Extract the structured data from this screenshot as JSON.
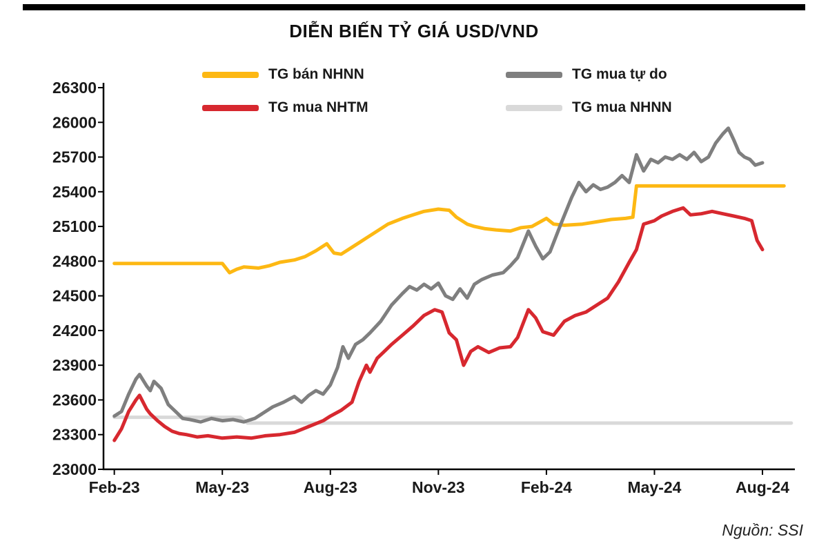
{
  "page": {
    "title": "DIỄN BIẾN TỶ GIÁ USD/VND",
    "source_note": "Nguồn: SSI"
  },
  "legend": [
    {
      "label": "TG bán NHNN",
      "color": "#FDB813"
    },
    {
      "label": "TG mua tự do",
      "color": "#7F7F7F"
    },
    {
      "label": "TG mua NHTM",
      "color": "#D7282F"
    },
    {
      "label": "TG mua NHNN",
      "color": "#D9D9D9"
    }
  ],
  "chart_data": {
    "type": "line",
    "title": "DIỄN BIẾN TỶ GIÁ USD/VND",
    "xlabel": "",
    "ylabel": "",
    "x_unit": "months since Feb-2023",
    "xlim": [
      -0.3,
      18.9
    ],
    "ylim": [
      23000,
      26300
    ],
    "yticks": [
      23000,
      23300,
      23600,
      23900,
      24200,
      24500,
      24800,
      25100,
      25400,
      25700,
      26000,
      26300
    ],
    "xticks": {
      "positions": [
        0,
        3,
        6,
        9,
        12,
        15,
        18
      ],
      "labels": [
        "Feb-23",
        "May-23",
        "Aug-23",
        "Nov-23",
        "Feb-24",
        "May-24",
        "Aug-24"
      ]
    },
    "grid": false,
    "legend_position": "top",
    "series": [
      {
        "name": "TG mua NHNN",
        "color": "#D9D9D9",
        "width": 5,
        "points": [
          [
            0,
            23450
          ],
          [
            3.5,
            23450
          ],
          [
            3.7,
            23400
          ],
          [
            18.8,
            23400
          ]
        ]
      },
      {
        "name": "TG bán NHNN",
        "color": "#FDB813",
        "width": 5,
        "points": [
          [
            0,
            24780
          ],
          [
            0.5,
            24780
          ],
          [
            1,
            24780
          ],
          [
            1.5,
            24780
          ],
          [
            2,
            24780
          ],
          [
            2.5,
            24780
          ],
          [
            3,
            24780
          ],
          [
            3.2,
            24700
          ],
          [
            3.4,
            24730
          ],
          [
            3.6,
            24750
          ],
          [
            4,
            24740
          ],
          [
            4.3,
            24760
          ],
          [
            4.6,
            24790
          ],
          [
            5,
            24810
          ],
          [
            5.3,
            24840
          ],
          [
            5.6,
            24890
          ],
          [
            5.9,
            24950
          ],
          [
            6.1,
            24870
          ],
          [
            6.3,
            24860
          ],
          [
            6.5,
            24900
          ],
          [
            6.8,
            24960
          ],
          [
            7,
            25000
          ],
          [
            7.3,
            25060
          ],
          [
            7.6,
            25120
          ],
          [
            8,
            25170
          ],
          [
            8.3,
            25200
          ],
          [
            8.6,
            25230
          ],
          [
            9,
            25250
          ],
          [
            9.3,
            25240
          ],
          [
            9.5,
            25180
          ],
          [
            9.8,
            25120
          ],
          [
            10,
            25100
          ],
          [
            10.3,
            25080
          ],
          [
            10.6,
            25070
          ],
          [
            11,
            25060
          ],
          [
            11.3,
            25090
          ],
          [
            11.6,
            25100
          ],
          [
            12,
            25170
          ],
          [
            12.2,
            25120
          ],
          [
            12.5,
            25110
          ],
          [
            13,
            25120
          ],
          [
            13.4,
            25140
          ],
          [
            13.8,
            25160
          ],
          [
            14.2,
            25170
          ],
          [
            14.4,
            25180
          ],
          [
            14.5,
            25450
          ],
          [
            15,
            25450
          ],
          [
            15.5,
            25450
          ],
          [
            16,
            25450
          ],
          [
            16.5,
            25450
          ],
          [
            17,
            25450
          ],
          [
            17.5,
            25450
          ],
          [
            18.6,
            25450
          ]
        ]
      },
      {
        "name": "TG mua tự do",
        "color": "#7F7F7F",
        "width": 5,
        "points": [
          [
            0,
            23460
          ],
          [
            0.2,
            23500
          ],
          [
            0.4,
            23650
          ],
          [
            0.6,
            23780
          ],
          [
            0.7,
            23820
          ],
          [
            0.9,
            23720
          ],
          [
            1,
            23680
          ],
          [
            1.1,
            23760
          ],
          [
            1.3,
            23700
          ],
          [
            1.5,
            23560
          ],
          [
            1.7,
            23500
          ],
          [
            1.9,
            23440
          ],
          [
            2.1,
            23430
          ],
          [
            2.4,
            23410
          ],
          [
            2.7,
            23440
          ],
          [
            3,
            23420
          ],
          [
            3.3,
            23430
          ],
          [
            3.6,
            23410
          ],
          [
            3.9,
            23440
          ],
          [
            4.1,
            23480
          ],
          [
            4.4,
            23540
          ],
          [
            4.7,
            23580
          ],
          [
            5,
            23630
          ],
          [
            5.2,
            23580
          ],
          [
            5.4,
            23640
          ],
          [
            5.6,
            23680
          ],
          [
            5.8,
            23650
          ],
          [
            6,
            23730
          ],
          [
            6.2,
            23880
          ],
          [
            6.35,
            24060
          ],
          [
            6.5,
            23960
          ],
          [
            6.7,
            24080
          ],
          [
            6.9,
            24120
          ],
          [
            7.1,
            24180
          ],
          [
            7.4,
            24280
          ],
          [
            7.7,
            24420
          ],
          [
            8,
            24520
          ],
          [
            8.2,
            24580
          ],
          [
            8.4,
            24550
          ],
          [
            8.6,
            24600
          ],
          [
            8.8,
            24560
          ],
          [
            9,
            24610
          ],
          [
            9.2,
            24500
          ],
          [
            9.4,
            24470
          ],
          [
            9.6,
            24560
          ],
          [
            9.8,
            24480
          ],
          [
            10,
            24600
          ],
          [
            10.2,
            24640
          ],
          [
            10.5,
            24680
          ],
          [
            10.8,
            24700
          ],
          [
            11,
            24760
          ],
          [
            11.2,
            24830
          ],
          [
            11.5,
            25060
          ],
          [
            11.7,
            24930
          ],
          [
            11.9,
            24820
          ],
          [
            12.1,
            24880
          ],
          [
            12.4,
            25120
          ],
          [
            12.7,
            25350
          ],
          [
            12.9,
            25480
          ],
          [
            13.1,
            25400
          ],
          [
            13.3,
            25460
          ],
          [
            13.5,
            25420
          ],
          [
            13.7,
            25440
          ],
          [
            13.9,
            25480
          ],
          [
            14.1,
            25540
          ],
          [
            14.3,
            25480
          ],
          [
            14.5,
            25720
          ],
          [
            14.7,
            25580
          ],
          [
            14.9,
            25680
          ],
          [
            15.1,
            25650
          ],
          [
            15.3,
            25700
          ],
          [
            15.5,
            25680
          ],
          [
            15.7,
            25720
          ],
          [
            15.9,
            25680
          ],
          [
            16.1,
            25740
          ],
          [
            16.3,
            25660
          ],
          [
            16.5,
            25700
          ],
          [
            16.7,
            25820
          ],
          [
            16.9,
            25900
          ],
          [
            17.05,
            25950
          ],
          [
            17.2,
            25850
          ],
          [
            17.35,
            25740
          ],
          [
            17.5,
            25700
          ],
          [
            17.65,
            25680
          ],
          [
            17.8,
            25630
          ],
          [
            18,
            25650
          ]
        ]
      },
      {
        "name": "TG mua NHTM",
        "color": "#D7282F",
        "width": 5,
        "points": [
          [
            0,
            23250
          ],
          [
            0.2,
            23350
          ],
          [
            0.4,
            23500
          ],
          [
            0.6,
            23600
          ],
          [
            0.7,
            23640
          ],
          [
            0.9,
            23520
          ],
          [
            1,
            23480
          ],
          [
            1.2,
            23420
          ],
          [
            1.4,
            23370
          ],
          [
            1.6,
            23330
          ],
          [
            1.8,
            23310
          ],
          [
            2,
            23300
          ],
          [
            2.3,
            23280
          ],
          [
            2.6,
            23290
          ],
          [
            3,
            23270
          ],
          [
            3.4,
            23280
          ],
          [
            3.8,
            23270
          ],
          [
            4.2,
            23290
          ],
          [
            4.6,
            23300
          ],
          [
            5,
            23320
          ],
          [
            5.4,
            23370
          ],
          [
            5.8,
            23420
          ],
          [
            6,
            23460
          ],
          [
            6.3,
            23510
          ],
          [
            6.6,
            23580
          ],
          [
            6.8,
            23760
          ],
          [
            7,
            23900
          ],
          [
            7.1,
            23840
          ],
          [
            7.3,
            23960
          ],
          [
            7.5,
            24020
          ],
          [
            7.7,
            24080
          ],
          [
            8,
            24160
          ],
          [
            8.3,
            24240
          ],
          [
            8.6,
            24330
          ],
          [
            8.9,
            24380
          ],
          [
            9.1,
            24360
          ],
          [
            9.3,
            24180
          ],
          [
            9.5,
            24120
          ],
          [
            9.7,
            23900
          ],
          [
            9.9,
            24020
          ],
          [
            10.1,
            24060
          ],
          [
            10.4,
            24010
          ],
          [
            10.7,
            24050
          ],
          [
            11,
            24060
          ],
          [
            11.2,
            24140
          ],
          [
            11.5,
            24380
          ],
          [
            11.7,
            24310
          ],
          [
            11.9,
            24190
          ],
          [
            12.2,
            24160
          ],
          [
            12.5,
            24280
          ],
          [
            12.8,
            24330
          ],
          [
            13.1,
            24360
          ],
          [
            13.4,
            24420
          ],
          [
            13.7,
            24480
          ],
          [
            14,
            24620
          ],
          [
            14.3,
            24790
          ],
          [
            14.5,
            24900
          ],
          [
            14.7,
            25120
          ],
          [
            15,
            25150
          ],
          [
            15.2,
            25190
          ],
          [
            15.5,
            25230
          ],
          [
            15.8,
            25260
          ],
          [
            16,
            25200
          ],
          [
            16.3,
            25210
          ],
          [
            16.6,
            25230
          ],
          [
            16.9,
            25210
          ],
          [
            17.2,
            25190
          ],
          [
            17.5,
            25170
          ],
          [
            17.7,
            25150
          ],
          [
            17.85,
            24980
          ],
          [
            18,
            24900
          ]
        ]
      }
    ]
  }
}
